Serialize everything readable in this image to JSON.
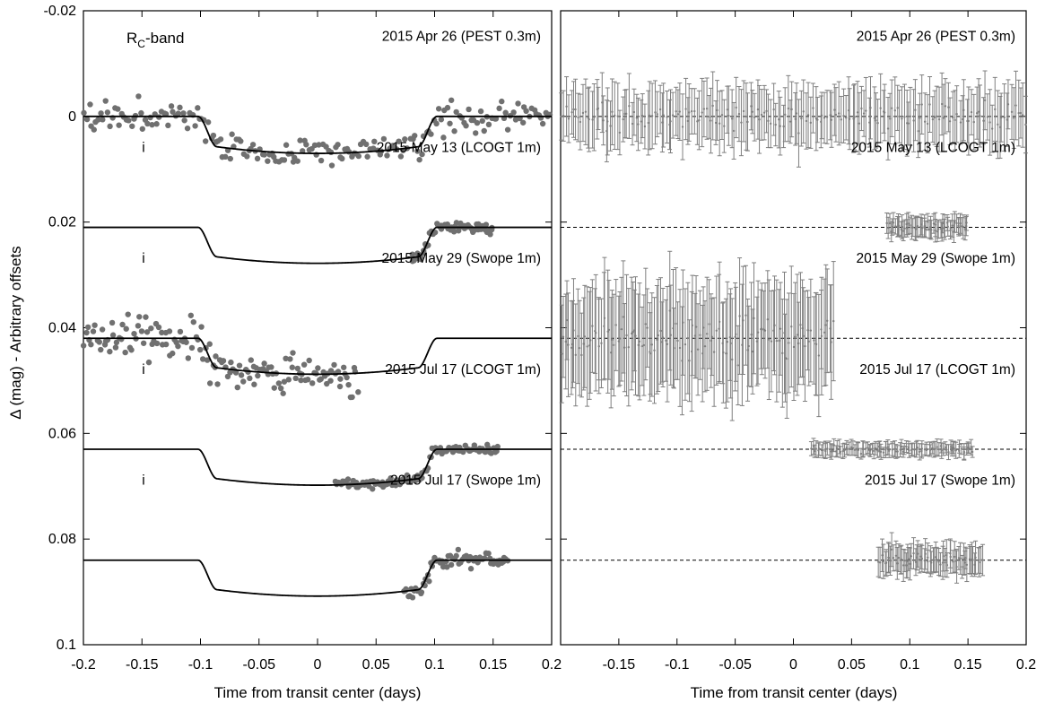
{
  "chart_data": [
    {
      "type": "scatter",
      "panel": "left",
      "xlabel": "Time from transit center (days)",
      "ylabel": "Δ (mag) - Arbitrary offsets",
      "xlim": [
        -0.2,
        0.2
      ],
      "ylim": [
        -0.02,
        0.1
      ],
      "y_inverted": true,
      "x_ticks": [
        "-0.2",
        "-0.15",
        "-0.1",
        "-0.05",
        "0",
        "0.05",
        "0.1",
        "0.15",
        "0.2"
      ],
      "y_ticks": [
        "-0.02",
        "0",
        "0.02",
        "0.04",
        "0.06",
        "0.08",
        "0.1"
      ],
      "band_label": "R",
      "band_sub": "C",
      "band_suffix": "-band",
      "series": [
        {
          "label": "2015 Apr 26 (PEST 0.3m)",
          "filter": "",
          "offset": 0.0,
          "depth": 0.007,
          "x_range": [
            -0.2,
            0.2
          ],
          "n_points": 200
        },
        {
          "label": "2015 May 13 (LCOGT 1m)",
          "filter": "i",
          "offset": 0.021,
          "depth": 0.0068,
          "x_range": [
            0.08,
            0.15
          ],
          "n_points": 60
        },
        {
          "label": "2015 May 29 (Swope 1m)",
          "filter": "i",
          "offset": 0.042,
          "depth": 0.0068,
          "x_range": [
            -0.2,
            0.035
          ],
          "n_points": 150
        },
        {
          "label": "2015 Jul 17 (LCOGT 1m)",
          "filter": "i",
          "offset": 0.063,
          "depth": 0.0068,
          "x_range": [
            0.015,
            0.155
          ],
          "n_points": 100
        },
        {
          "label": "2015 Jul 17 (Swope 1m)",
          "filter": "i",
          "offset": 0.084,
          "depth": 0.0068,
          "x_range": [
            0.073,
            0.163
          ],
          "n_points": 70
        }
      ]
    },
    {
      "type": "scatter",
      "panel": "right",
      "description": "residuals with error bars",
      "xlabel": "Time from transit center (days)",
      "xlim": [
        -0.2,
        0.2
      ],
      "ylim": [
        -0.02,
        0.1
      ],
      "x_ticks": [
        "-0.15",
        "-0.1",
        "-0.05",
        "0",
        "0.05",
        "0.1",
        "0.15",
        "0.2"
      ],
      "series": [
        {
          "label": "2015 Apr 26 (PEST 0.3m)",
          "offset": 0.0,
          "x_range": [
            -0.2,
            0.2
          ],
          "n_points": 200,
          "err": 0.005
        },
        {
          "label": "2015 May 13 (LCOGT 1m)",
          "offset": 0.021,
          "x_range": [
            0.08,
            0.15
          ],
          "n_points": 60,
          "err": 0.0018
        },
        {
          "label": "2015 May 29 (Swope 1m)",
          "offset": 0.042,
          "x_range": [
            -0.2,
            0.035
          ],
          "n_points": 150,
          "err": 0.009
        },
        {
          "label": "2015 Jul 17 (LCOGT 1m)",
          "offset": 0.063,
          "x_range": [
            0.015,
            0.155
          ],
          "n_points": 100,
          "err": 0.0012
        },
        {
          "label": "2015 Jul 17 (Swope 1m)",
          "offset": 0.084,
          "x_range": [
            0.073,
            0.163
          ],
          "n_points": 70,
          "err": 0.0025
        }
      ]
    }
  ],
  "colors": {
    "points": "#707070",
    "model": "#000000",
    "errbar": "#7f7f7f"
  }
}
